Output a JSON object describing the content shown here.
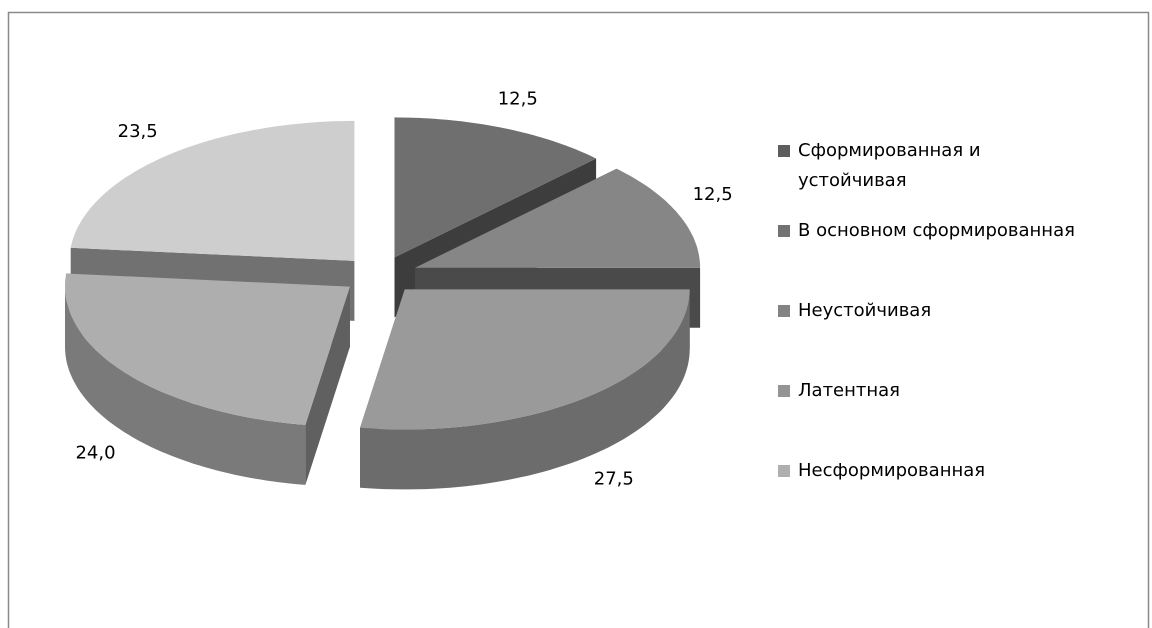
{
  "chart_data": {
    "type": "pie",
    "categories": [
      "Сформированная и устойчивая",
      "В основном сформированная",
      "Неустойчивая",
      "Латентная",
      "Несформированная"
    ],
    "values": [
      12.5,
      12.5,
      27.5,
      24.0,
      23.5
    ],
    "value_labels": [
      "12,5",
      "12,5",
      "27,5",
      "24,0",
      "23,5"
    ],
    "colors": [
      "#6f6f6f",
      "#868686",
      "#9a9a9a",
      "#aeaeae",
      "#cecece"
    ],
    "legend": "right"
  }
}
